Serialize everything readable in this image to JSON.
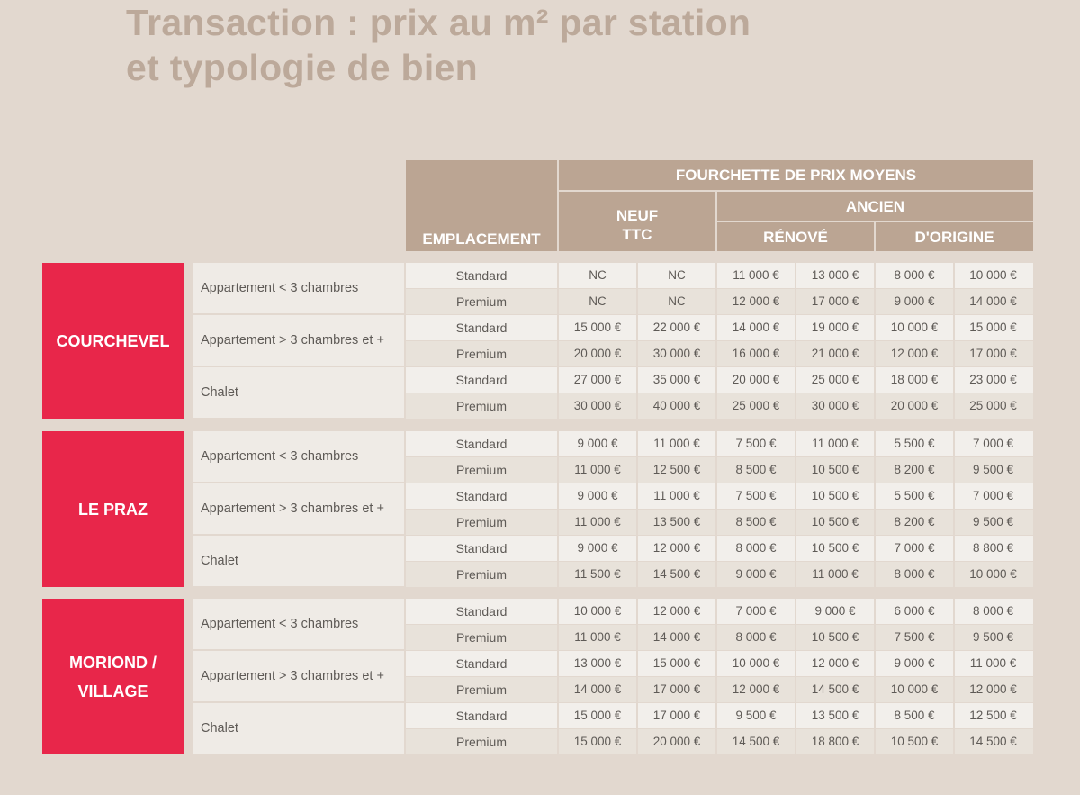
{
  "title": {
    "line1": "Transaction : prix au m² par station",
    "line2": "et typologie de bien"
  },
  "headers": {
    "emplacement": "EMPLACEMENT",
    "fourchette": "FOURCHETTE DE PRIX MOYENS",
    "neuf_line1": "NEUF",
    "neuf_line2": "TTC",
    "ancien": "ANCIEN",
    "renove": "RÉNOVÉ",
    "origine": "D'ORIGINE"
  },
  "stations": [
    {
      "name_line1": "COURCHEVEL",
      "name_line2": "",
      "types": [
        {
          "label": "Appartement < 3 chambres",
          "rows": [
            {
              "quality": "Standard",
              "values": [
                "NC",
                "NC",
                "11 000 €",
                "13 000 €",
                "8 000 €",
                "10 000 €"
              ]
            },
            {
              "quality": "Premium",
              "values": [
                "NC",
                "NC",
                "12 000 €",
                "17 000 €",
                "9 000 €",
                "14 000 €"
              ]
            }
          ]
        },
        {
          "label": "Appartement > 3 chambres et +",
          "rows": [
            {
              "quality": "Standard",
              "values": [
                "15 000 €",
                "22 000 €",
                "14 000 €",
                "19 000 €",
                "10 000 €",
                "15 000 €"
              ]
            },
            {
              "quality": "Premium",
              "values": [
                "20 000 €",
                "30 000 €",
                "16 000 €",
                "21 000 €",
                "12 000 €",
                "17 000 €"
              ]
            }
          ]
        },
        {
          "label": "Chalet",
          "rows": [
            {
              "quality": "Standard",
              "values": [
                "27 000 €",
                "35 000 €",
                "20 000 €",
                "25 000 €",
                "18 000 €",
                "23 000 €"
              ]
            },
            {
              "quality": "Premium",
              "values": [
                "30 000 €",
                "40 000 €",
                "25 000 €",
                "30 000 €",
                "20 000 €",
                "25 000 €"
              ]
            }
          ]
        }
      ]
    },
    {
      "name_line1": "LE PRAZ",
      "name_line2": "",
      "types": [
        {
          "label": "Appartement < 3 chambres",
          "rows": [
            {
              "quality": "Standard",
              "values": [
                "9 000 €",
                "11 000 €",
                "7 500 €",
                "11 000 €",
                "5 500 €",
                "7 000 €"
              ]
            },
            {
              "quality": "Premium",
              "values": [
                "11 000 €",
                "12 500 €",
                "8 500 €",
                "10 500 €",
                "8 200 €",
                "9 500 €"
              ]
            }
          ]
        },
        {
          "label": "Appartement > 3 chambres et +",
          "rows": [
            {
              "quality": "Standard",
              "values": [
                "9 000 €",
                "11 000 €",
                "7 500 €",
                "10 500 €",
                "5 500 €",
                "7 000 €"
              ]
            },
            {
              "quality": "Premium",
              "values": [
                "11 000 €",
                "13 500 €",
                "8 500 €",
                "10 500 €",
                "8 200 €",
                "9 500 €"
              ]
            }
          ]
        },
        {
          "label": "Chalet",
          "rows": [
            {
              "quality": "Standard",
              "values": [
                "9 000 €",
                "12 000 €",
                "8 000 €",
                "10 500 €",
                "7 000 €",
                "8 800 €"
              ]
            },
            {
              "quality": "Premium",
              "values": [
                "11 500 €",
                "14 500 €",
                "9 000 €",
                "11 000 €",
                "8 000 €",
                "10 000 €"
              ]
            }
          ]
        }
      ]
    },
    {
      "name_line1": "MORIOND /",
      "name_line2": "VILLAGE",
      "types": [
        {
          "label": "Appartement < 3 chambres",
          "rows": [
            {
              "quality": "Standard",
              "values": [
                "10 000 €",
                "12 000 €",
                "7 000 €",
                "9 000 €",
                "6 000 €",
                "8 000 €"
              ]
            },
            {
              "quality": "Premium",
              "values": [
                "11 000 €",
                "14 000 €",
                "8 000 €",
                "10 500 €",
                "7 500 €",
                "9 500 €"
              ]
            }
          ]
        },
        {
          "label": "Appartement > 3 chambres et +",
          "rows": [
            {
              "quality": "Standard",
              "values": [
                "13 000 €",
                "15 000 €",
                "10 000 €",
                "12 000 €",
                "9 000 €",
                "11 000 €"
              ]
            },
            {
              "quality": "Premium",
              "values": [
                "14 000 €",
                "17 000 €",
                "12 000 €",
                "14 500 €",
                "10 000 €",
                "12 000 €"
              ]
            }
          ]
        },
        {
          "label": "Chalet",
          "rows": [
            {
              "quality": "Standard",
              "values": [
                "15 000 €",
                "17 000 €",
                "9 500 €",
                "13 500 €",
                "8 500 €",
                "12 500 €"
              ]
            },
            {
              "quality": "Premium",
              "values": [
                "15 000 €",
                "20 000 €",
                "14 500 €",
                "18 800 €",
                "10 500 €",
                "14 500 €"
              ]
            }
          ]
        }
      ]
    }
  ]
}
